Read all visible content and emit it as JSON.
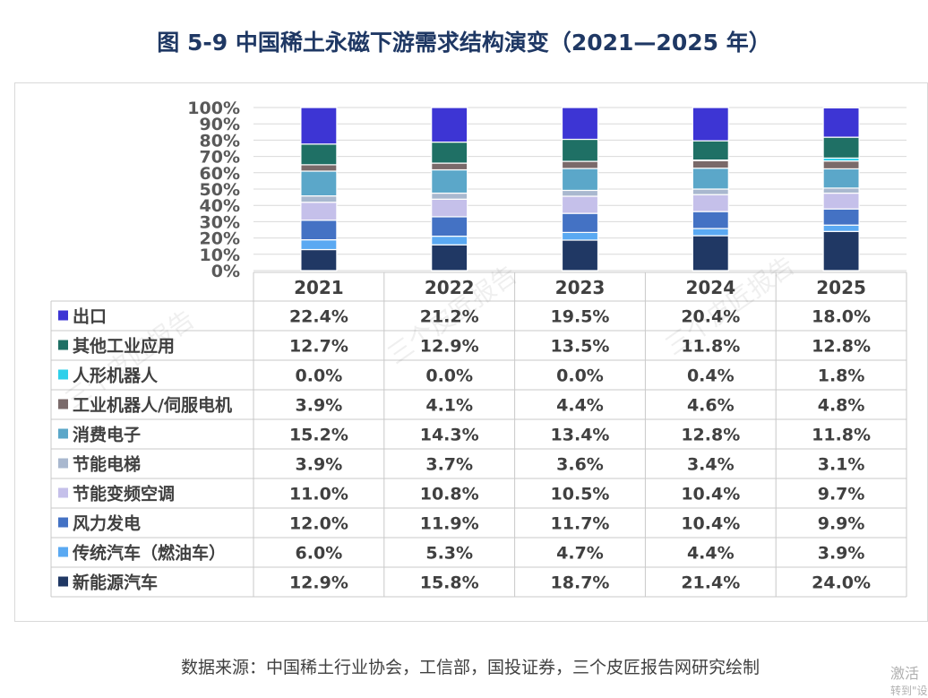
{
  "page": {
    "title": "图 5-9 中国稀土永磁下游需求结构演变（2021—2025 年）",
    "source": "数据来源：中国稀土行业协会，工信部，国投证券，三个皮匠报告网研究绘制",
    "watermark": "三个皮匠报告",
    "activate_line1": "激活",
    "activate_line2": "转到\"设"
  },
  "chart_data": {
    "type": "bar",
    "stacked": true,
    "percent": true,
    "categories": [
      "2021",
      "2022",
      "2023",
      "2024",
      "2025"
    ],
    "yticks": [
      "0%",
      "10%",
      "20%",
      "30%",
      "40%",
      "50%",
      "60%",
      "70%",
      "80%",
      "90%",
      "100%"
    ],
    "ylim": [
      0,
      100
    ],
    "grid": true,
    "legend": "table-left",
    "series": [
      {
        "name": "新能源汽车",
        "color": "#203864",
        "values": [
          12.9,
          15.8,
          18.7,
          21.4,
          24.0
        ],
        "labels": [
          "12.9%",
          "15.8%",
          "18.7%",
          "21.4%",
          "24.0%"
        ]
      },
      {
        "name": "传统汽车（燃油车）",
        "color": "#5aa9f2",
        "values": [
          6.0,
          5.3,
          4.7,
          4.4,
          3.9
        ],
        "labels": [
          "6.0%",
          "5.3%",
          "4.7%",
          "4.4%",
          "3.9%"
        ]
      },
      {
        "name": "风力发电",
        "color": "#4472c4",
        "values": [
          12.0,
          11.9,
          11.7,
          10.4,
          9.9
        ],
        "labels": [
          "12.0%",
          "11.9%",
          "11.7%",
          "10.4%",
          "9.9%"
        ]
      },
      {
        "name": "节能变频空调",
        "color": "#c5c0ea",
        "values": [
          11.0,
          10.8,
          10.5,
          10.4,
          9.7
        ],
        "labels": [
          "11.0%",
          "10.8%",
          "10.5%",
          "10.4%",
          "9.7%"
        ]
      },
      {
        "name": "节能电梯",
        "color": "#a9b8cf",
        "values": [
          3.9,
          3.7,
          3.6,
          3.4,
          3.1
        ],
        "labels": [
          "3.9%",
          "3.7%",
          "3.6%",
          "3.4%",
          "3.1%"
        ]
      },
      {
        "name": "消费电子",
        "color": "#5ba7c9",
        "values": [
          15.2,
          14.3,
          13.4,
          12.8,
          11.8
        ],
        "labels": [
          "15.2%",
          "14.3%",
          "13.4%",
          "12.8%",
          "11.8%"
        ]
      },
      {
        "name": "工业机器人/伺服电机",
        "color": "#7a6a6a",
        "values": [
          3.9,
          4.1,
          4.4,
          4.6,
          4.8
        ],
        "labels": [
          "3.9%",
          "4.1%",
          "4.4%",
          "4.6%",
          "4.8%"
        ]
      },
      {
        "name": "人形机器人",
        "color": "#2ed0ea",
        "values": [
          0.0,
          0.0,
          0.0,
          0.4,
          1.8
        ],
        "labels": [
          "0.0%",
          "0.0%",
          "0.0%",
          "0.4%",
          "1.8%"
        ]
      },
      {
        "name": "其他工业应用",
        "color": "#1f7065",
        "values": [
          12.7,
          12.9,
          13.5,
          11.8,
          12.8
        ],
        "labels": [
          "12.7%",
          "12.9%",
          "13.5%",
          "11.8%",
          "12.8%"
        ]
      },
      {
        "name": "出口",
        "color": "#3d35d4",
        "values": [
          22.4,
          21.2,
          19.5,
          20.4,
          18.0
        ],
        "labels": [
          "22.4%",
          "21.2%",
          "19.5%",
          "20.4%",
          "18.0%"
        ]
      }
    ]
  }
}
